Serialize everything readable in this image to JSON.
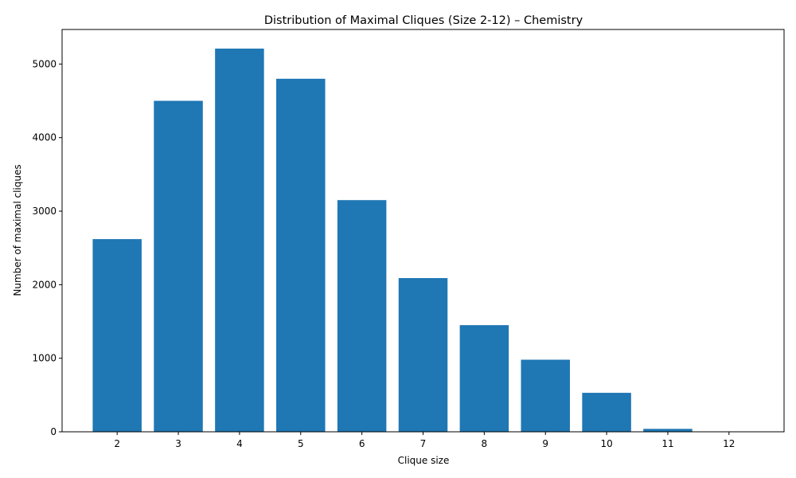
{
  "chart_data": {
    "type": "bar",
    "title": "Distribution of Maximal Cliques (Size 2-12) – Chemistry",
    "xlabel": "Clique size",
    "ylabel": "Number of maximal cliques",
    "categories": [
      "2",
      "3",
      "4",
      "5",
      "6",
      "7",
      "8",
      "9",
      "10",
      "11",
      "12"
    ],
    "values": [
      2620,
      4500,
      5210,
      4800,
      3150,
      2090,
      1450,
      980,
      530,
      40,
      5
    ],
    "ylim": [
      0,
      5470
    ],
    "yticks": [
      0,
      1000,
      2000,
      3000,
      4000,
      5000
    ],
    "bar_color": "#1f77b4",
    "grid": false,
    "legend": "none"
  }
}
